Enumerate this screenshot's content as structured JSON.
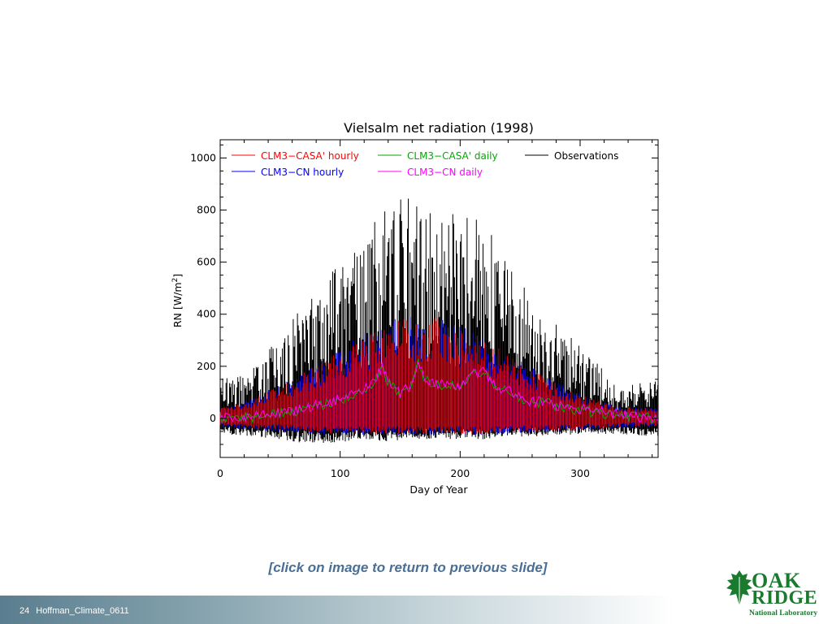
{
  "slide": {
    "return_link": "[click on image to return to previous slide]",
    "slide_number": "24",
    "footer_label": "Hoffman_Climate_0611"
  },
  "logo": {
    "line1": "OAK",
    "line2": "RIDGE",
    "line3": "National Laboratory",
    "color": "#1a7a2e"
  },
  "chart_data": {
    "type": "line",
    "title": "Vielsalm net radiation (1998)",
    "xlabel": "Day of Year",
    "ylabel_main": "RN [W/m",
    "ylabel_sup": "2",
    "ylabel_end": "]",
    "xlim": [
      0,
      365
    ],
    "ylim": [
      -150,
      1070
    ],
    "xticks": [
      0,
      100,
      200,
      300
    ],
    "yticks": [
      0,
      200,
      400,
      600,
      800,
      1000
    ],
    "grid": false,
    "legend_position": "top (inside plot)",
    "series": [
      {
        "name": "CLM3−CASA' hourly",
        "color": "#ff0000",
        "kind": "hourly",
        "x": [
          0,
          30,
          60,
          90,
          120,
          150,
          180,
          210,
          240,
          270,
          300,
          330,
          365
        ],
        "max": [
          40,
          80,
          150,
          230,
          320,
          380,
          390,
          330,
          250,
          160,
          90,
          45,
          40
        ],
        "min": [
          -30,
          -40,
          -50,
          -60,
          -60,
          -60,
          -60,
          -60,
          -55,
          -50,
          -45,
          -35,
          -30
        ]
      },
      {
        "name": "CLM3−CASA' daily",
        "color": "#00aa00",
        "kind": "daily",
        "x": [
          0,
          10,
          20,
          30,
          40,
          50,
          60,
          70,
          80,
          90,
          100,
          110,
          120,
          130,
          135,
          140,
          150,
          160,
          165,
          170,
          180,
          190,
          200,
          210,
          220,
          230,
          240,
          250,
          260,
          270,
          280,
          290,
          300,
          310,
          320,
          330,
          340,
          350,
          360,
          365
        ],
        "values": [
          5,
          3,
          0,
          5,
          15,
          20,
          25,
          35,
          45,
          60,
          70,
          85,
          110,
          150,
          195,
          140,
          95,
          125,
          225,
          150,
          125,
          130,
          115,
          170,
          175,
          110,
          105,
          80,
          55,
          65,
          45,
          40,
          30,
          25,
          20,
          10,
          5,
          5,
          0,
          5
        ]
      },
      {
        "name": "CLM3−CN hourly",
        "color": "#0000ff",
        "kind": "hourly",
        "x": [
          0,
          30,
          60,
          90,
          120,
          150,
          180,
          210,
          240,
          270,
          300,
          330,
          365
        ],
        "max": [
          40,
          80,
          160,
          240,
          330,
          390,
          395,
          335,
          255,
          165,
          95,
          50,
          40
        ],
        "min": [
          -35,
          -45,
          -55,
          -65,
          -65,
          -65,
          -65,
          -65,
          -60,
          -55,
          -50,
          -40,
          -35
        ]
      },
      {
        "name": "CLM3−CN daily",
        "color": "#ff00ff",
        "kind": "daily",
        "x": [
          0,
          10,
          20,
          30,
          40,
          50,
          60,
          70,
          80,
          90,
          100,
          110,
          120,
          130,
          135,
          140,
          150,
          160,
          165,
          170,
          180,
          190,
          200,
          210,
          220,
          230,
          240,
          250,
          260,
          270,
          280,
          290,
          300,
          310,
          320,
          330,
          340,
          350,
          360,
          365
        ],
        "values": [
          5,
          0,
          0,
          10,
          20,
          25,
          30,
          40,
          50,
          60,
          75,
          90,
          115,
          155,
          200,
          145,
          100,
          130,
          230,
          155,
          130,
          135,
          120,
          175,
          180,
          115,
          110,
          85,
          60,
          70,
          50,
          45,
          35,
          30,
          25,
          15,
          10,
          5,
          0,
          5
        ]
      },
      {
        "name": "Observations",
        "color": "#000000",
        "kind": "observed",
        "x": [
          0,
          30,
          60,
          90,
          120,
          140,
          160,
          180,
          200,
          220,
          240,
          270,
          300,
          330,
          365
        ],
        "max": [
          150,
          200,
          380,
          560,
          730,
          820,
          900,
          760,
          800,
          760,
          600,
          420,
          300,
          120,
          150
        ],
        "min": [
          -60,
          -70,
          -90,
          -100,
          -80,
          -90,
          -80,
          -80,
          -80,
          -80,
          -70,
          -70,
          -60,
          -60,
          -70
        ]
      }
    ]
  }
}
